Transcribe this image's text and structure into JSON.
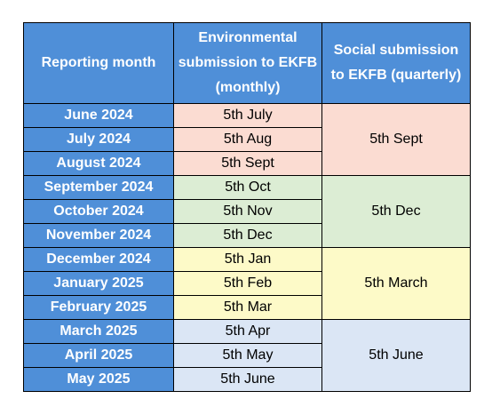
{
  "headers": {
    "reporting_month": "Reporting month",
    "environmental": "Environmental submission to EKFB (monthly)",
    "social": "Social submission to EKFB (quarterly)"
  },
  "rows": [
    {
      "month": "June 2024",
      "env": "5th July"
    },
    {
      "month": "July 2024",
      "env": "5th Aug"
    },
    {
      "month": "August 2024",
      "env": "5th Sept"
    },
    {
      "month": "September 2024",
      "env": "5th Oct"
    },
    {
      "month": "October 2024",
      "env": "5th Nov"
    },
    {
      "month": "November 2024",
      "env": "5th Dec"
    },
    {
      "month": "December 2024",
      "env": "5th Jan"
    },
    {
      "month": "January 2025",
      "env": "5th Feb"
    },
    {
      "month": "February 2025",
      "env": "5th Mar"
    },
    {
      "month": "March 2025",
      "env": "5th Apr"
    },
    {
      "month": "April 2025",
      "env": "5th May"
    },
    {
      "month": "May 2025",
      "env": "5th June"
    }
  ],
  "social": [
    "5th Sept",
    "5th Dec",
    "5th March",
    "5th June"
  ],
  "colors": {
    "header_bg": "#4f8fd8",
    "quarter_1": "#fbdcd2",
    "quarter_2": "#dcedd4",
    "quarter_3": "#fdfac8",
    "quarter_4": "#dbe6f5"
  }
}
